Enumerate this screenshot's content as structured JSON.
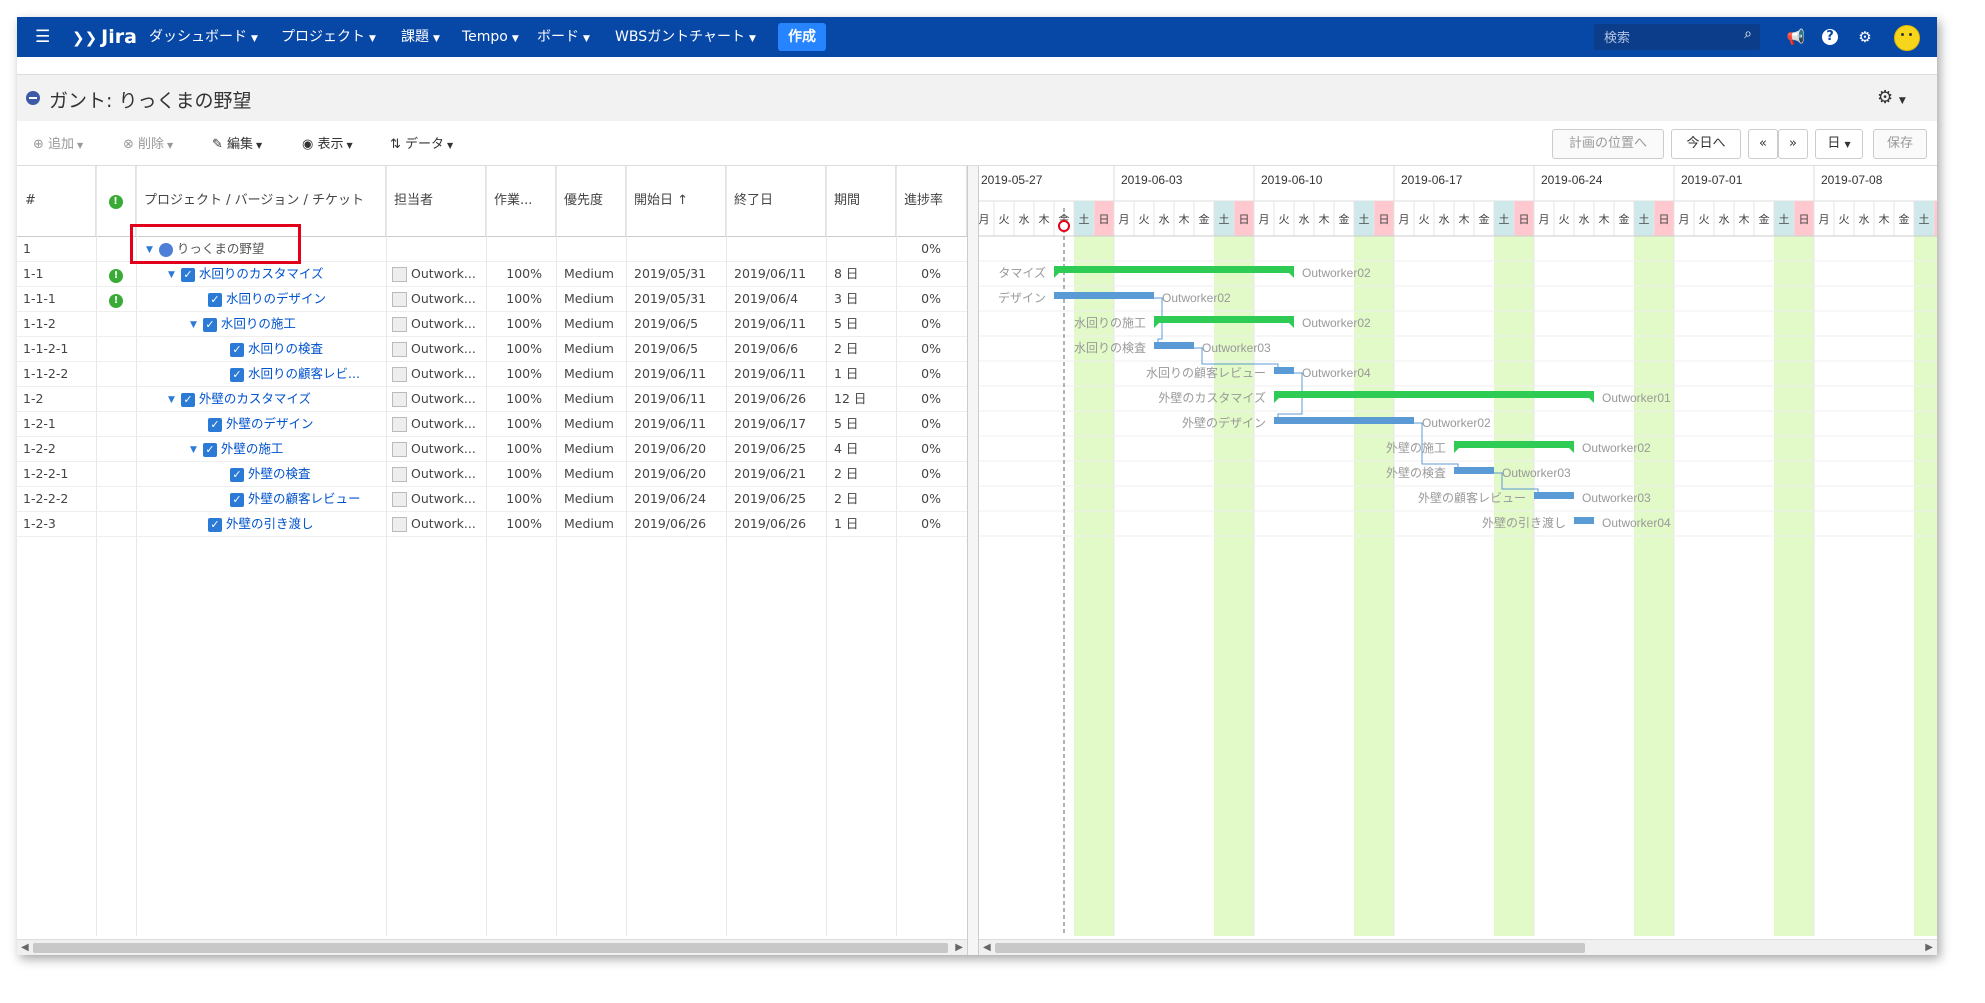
{
  "nav": {
    "menu_icon": "☰",
    "logo": "Jira",
    "items": [
      {
        "label": "ダッシュボード"
      },
      {
        "label": "プロジェクト"
      },
      {
        "label": "課題"
      },
      {
        "label": "Tempo"
      },
      {
        "label": "ボード"
      },
      {
        "label": "WBSガントチャート"
      }
    ],
    "create": "作成",
    "search_placeholder": "検索",
    "icons": [
      "megaphone-icon",
      "help-icon",
      "gear-icon",
      "avatar"
    ]
  },
  "title": "ガント: りっくまの野望",
  "toolbar": {
    "add": "追加",
    "delete": "削除",
    "edit": "編集",
    "view": "表示",
    "data": "データ",
    "to_plan": "計画の位置へ",
    "to_today": "今日へ",
    "prev": "«",
    "next": "»",
    "scale": "日",
    "save": "保存"
  },
  "columns": [
    "#",
    "!",
    "プロジェクト / バージョン / チケット",
    "担当者",
    "作業...",
    "優先度",
    "開始日",
    "終了日",
    "期間",
    "進捗率"
  ],
  "sort_indicator": "↑",
  "rows": [
    {
      "num": "1",
      "warn": false,
      "title": "りっくまの野望",
      "level": 0,
      "type": "project",
      "assignee": "",
      "work": "",
      "priority": "",
      "start": "",
      "end": "",
      "duration": "",
      "progress": "0%"
    },
    {
      "num": "1-1",
      "warn": true,
      "title": "水回りのカスタマイズ",
      "level": 1,
      "type": "parent",
      "assignee": "Outwork...",
      "work": "100%",
      "priority": "Medium",
      "start": "2019/05/31",
      "end": "2019/06/11",
      "duration": "8 日",
      "progress": "0%"
    },
    {
      "num": "1-1-1",
      "warn": true,
      "title": "水回りのデザイン",
      "level": 2,
      "type": "leaf",
      "assignee": "Outwork...",
      "work": "100%",
      "priority": "Medium",
      "start": "2019/05/31",
      "end": "2019/06/4",
      "duration": "3 日",
      "progress": "0%"
    },
    {
      "num": "1-1-2",
      "warn": false,
      "title": "水回りの施工",
      "level": 2,
      "type": "parent",
      "assignee": "Outwork...",
      "work": "100%",
      "priority": "Medium",
      "start": "2019/06/5",
      "end": "2019/06/11",
      "duration": "5 日",
      "progress": "0%"
    },
    {
      "num": "1-1-2-1",
      "warn": false,
      "title": "水回りの検査",
      "level": 3,
      "type": "leaf",
      "assignee": "Outwork...",
      "work": "100%",
      "priority": "Medium",
      "start": "2019/06/5",
      "end": "2019/06/6",
      "duration": "2 日",
      "progress": "0%"
    },
    {
      "num": "1-1-2-2",
      "warn": false,
      "title": "水回りの顧客レビ...",
      "level": 3,
      "type": "leaf",
      "assignee": "Outwork...",
      "work": "100%",
      "priority": "Medium",
      "start": "2019/06/11",
      "end": "2019/06/11",
      "duration": "1 日",
      "progress": "0%"
    },
    {
      "num": "1-2",
      "warn": false,
      "title": "外壁のカスタマイズ",
      "level": 1,
      "type": "parent",
      "assignee": "Outwork...",
      "work": "100%",
      "priority": "Medium",
      "start": "2019/06/11",
      "end": "2019/06/26",
      "duration": "12 日",
      "progress": "0%"
    },
    {
      "num": "1-2-1",
      "warn": false,
      "title": "外壁のデザイン",
      "level": 2,
      "type": "leaf",
      "assignee": "Outwork...",
      "work": "100%",
      "priority": "Medium",
      "start": "2019/06/11",
      "end": "2019/06/17",
      "duration": "5 日",
      "progress": "0%"
    },
    {
      "num": "1-2-2",
      "warn": false,
      "title": "外壁の施工",
      "level": 2,
      "type": "parent",
      "assignee": "Outwork...",
      "work": "100%",
      "priority": "Medium",
      "start": "2019/06/20",
      "end": "2019/06/25",
      "duration": "4 日",
      "progress": "0%"
    },
    {
      "num": "1-2-2-1",
      "warn": false,
      "title": "外壁の検査",
      "level": 3,
      "type": "leaf",
      "assignee": "Outwork...",
      "work": "100%",
      "priority": "Medium",
      "start": "2019/06/20",
      "end": "2019/06/21",
      "duration": "2 日",
      "progress": "0%"
    },
    {
      "num": "1-2-2-2",
      "warn": false,
      "title": "外壁の顧客レビュー",
      "level": 3,
      "type": "leaf",
      "assignee": "Outwork...",
      "work": "100%",
      "priority": "Medium",
      "start": "2019/06/24",
      "end": "2019/06/25",
      "duration": "2 日",
      "progress": "0%"
    },
    {
      "num": "1-2-3",
      "warn": false,
      "title": "外壁の引き渡し",
      "level": 2,
      "type": "leaf",
      "assignee": "Outwork...",
      "work": "100%",
      "priority": "Medium",
      "start": "2019/06/26",
      "end": "2019/06/26",
      "duration": "1 日",
      "progress": "0%"
    }
  ],
  "gantt": {
    "weeks": [
      "2019-05-27",
      "2019-06-03",
      "2019-06-10",
      "2019-06-17",
      "2019-06-24",
      "2019-07-01",
      "2019-07-08"
    ],
    "weekdays": [
      "月",
      "火",
      "水",
      "木",
      "金",
      "土",
      "日"
    ],
    "view_start": "2019-05-27",
    "today": "2019-05-31",
    "colors": {
      "summary": "#2ecc55",
      "task": "#5b9bd5",
      "weekend_sat": "#cfe9ea",
      "weekend_sun": "#ffc7ce",
      "holiday_band": "#e2f9c8",
      "today_line": "#666666",
      "marker": "#e3001b"
    },
    "bars": [
      {
        "row": 1,
        "kind": "summary",
        "start": "2019-05-31",
        "end": "2019-06-11",
        "left_label": "タマイズ",
        "right_label": "Outworker02"
      },
      {
        "row": 2,
        "kind": "task",
        "start": "2019-05-31",
        "end": "2019-06-04",
        "left_label": "デザイン",
        "right_label": "Outworker02"
      },
      {
        "row": 3,
        "kind": "summary",
        "start": "2019-06-05",
        "end": "2019-06-11",
        "left_label": "水回りの施工",
        "right_label": "Outworker02"
      },
      {
        "row": 4,
        "kind": "task",
        "start": "2019-06-05",
        "end": "2019-06-06",
        "left_label": "水回りの検査",
        "right_label": "Outworker03"
      },
      {
        "row": 5,
        "kind": "task",
        "start": "2019-06-11",
        "end": "2019-06-11",
        "left_label": "水回りの顧客レビュー",
        "right_label": "Outworker04"
      },
      {
        "row": 6,
        "kind": "summary",
        "start": "2019-06-11",
        "end": "2019-06-26",
        "left_label": "外壁のカスタマイズ",
        "right_label": "Outworker01"
      },
      {
        "row": 7,
        "kind": "task",
        "start": "2019-06-11",
        "end": "2019-06-17",
        "left_label": "外壁のデザイン",
        "right_label": "Outworker02"
      },
      {
        "row": 8,
        "kind": "summary",
        "start": "2019-06-20",
        "end": "2019-06-25",
        "left_label": "外壁の施工",
        "right_label": "Outworker02"
      },
      {
        "row": 9,
        "kind": "task",
        "start": "2019-06-20",
        "end": "2019-06-21",
        "left_label": "外壁の検査",
        "right_label": "Outworker03"
      },
      {
        "row": 10,
        "kind": "task",
        "start": "2019-06-24",
        "end": "2019-06-25",
        "left_label": "外壁の顧客レビュー",
        "right_label": "Outworker03"
      },
      {
        "row": 11,
        "kind": "task",
        "start": "2019-06-26",
        "end": "2019-06-26",
        "left_label": "外壁の引き渡し",
        "right_label": "Outworker04"
      }
    ],
    "dependencies": [
      {
        "from": 2,
        "to": 4
      },
      {
        "from": 4,
        "to": 5
      },
      {
        "from": 5,
        "to": 7
      },
      {
        "from": 7,
        "to": 9
      },
      {
        "from": 9,
        "to": 10
      }
    ]
  }
}
